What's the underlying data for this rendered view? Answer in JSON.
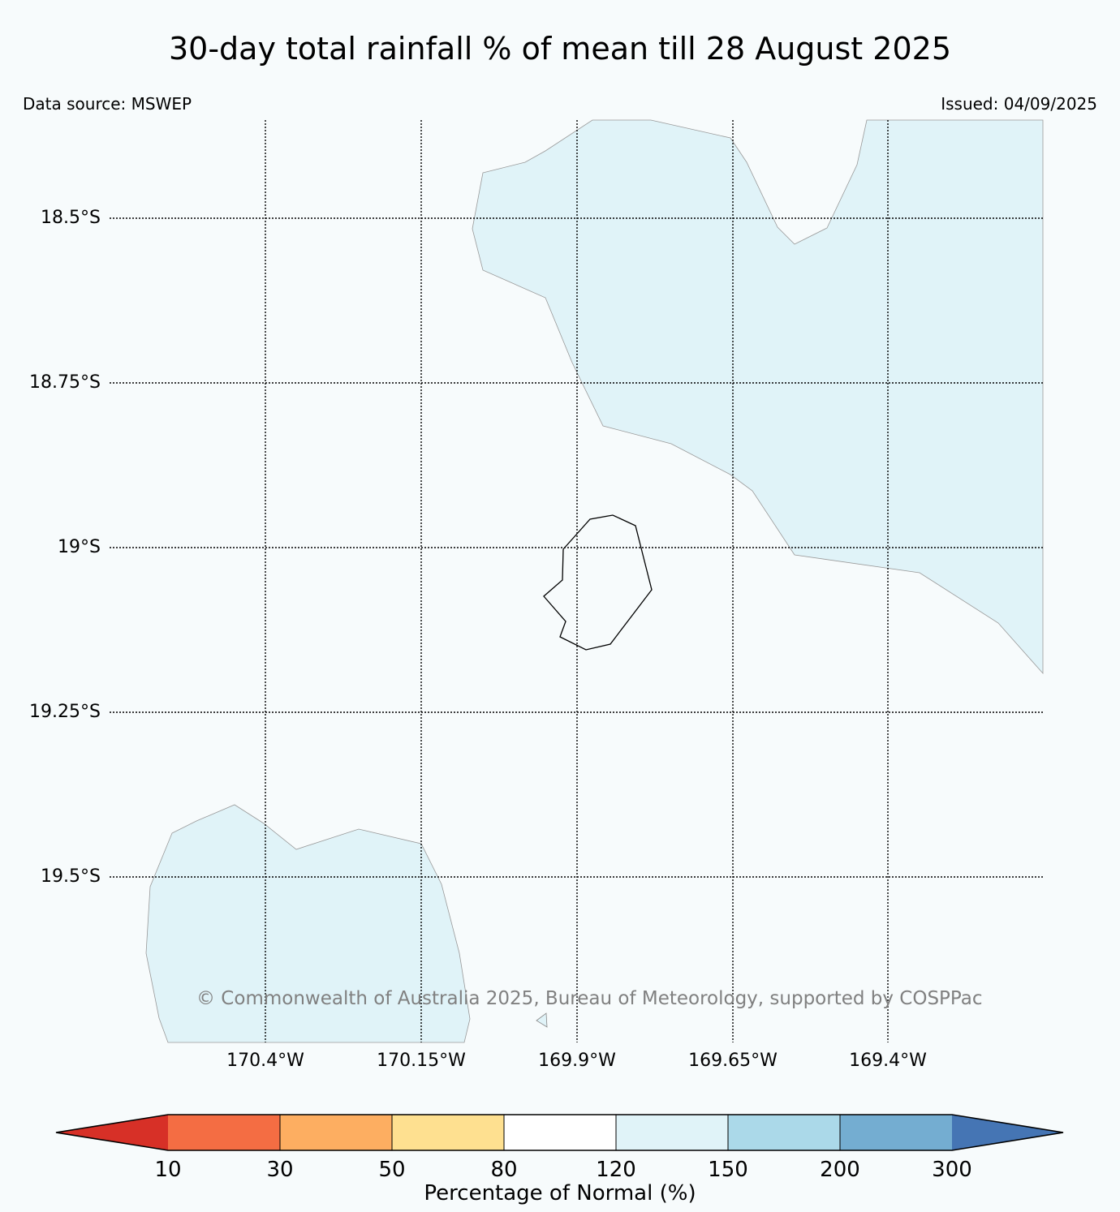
{
  "header": {
    "title": "30-day total rainfall % of mean till 28 August 2025",
    "data_source": "Data source: MSWEP",
    "issued": "Issued: 04/09/2025"
  },
  "map": {
    "latitude_labels": [
      "18.5°S",
      "18.75°S",
      "19°S",
      "19.25°S",
      "19.5°S"
    ],
    "longitude_labels": [
      "170.4°W",
      "170.15°W",
      "169.9°W",
      "169.65°W",
      "169.4°W"
    ],
    "copyright": "© Commonwealth of Australia 2025, Bureau of Meteorology, supported by COSPPac",
    "fill_colors": {
      "background": "#f7fbfc",
      "region_120_150": "#e0f3f8"
    }
  },
  "colorbar": {
    "label": "Percentage of Normal (%)",
    "ticks": [
      "10",
      "30",
      "50",
      "80",
      "120",
      "150",
      "200",
      "300"
    ],
    "colors": [
      "#d73027",
      "#f46d43",
      "#fdae61",
      "#fee090",
      "#ffffff",
      "#e0f3f8",
      "#abd9e9",
      "#74add1",
      "#4575b4"
    ]
  }
}
